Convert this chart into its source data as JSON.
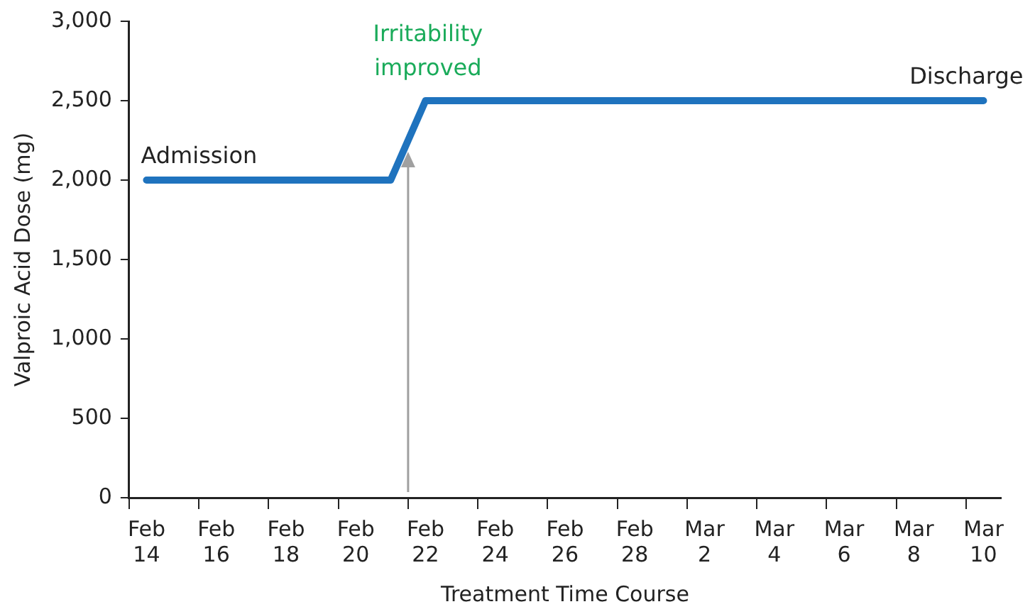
{
  "chart_data": {
    "type": "line",
    "xlabel": "Treatment Time Course",
    "ylabel": "Valproic Acid Dose (mg)",
    "categories": [
      "Feb 14",
      null,
      "Feb 16",
      null,
      "Feb 18",
      null,
      "Feb 20",
      null,
      "Feb 22",
      null,
      "Feb 24",
      null,
      "Feb 26",
      null,
      "Feb 28",
      null,
      "Mar 2",
      null,
      "Mar 4",
      null,
      "Mar 6",
      null,
      "Mar 8",
      null,
      "Mar 10"
    ],
    "series": [
      {
        "color": "#1f73be",
        "values": [
          2000,
          2000,
          2000,
          2000,
          2000,
          2000,
          2000,
          2000,
          2500,
          2500,
          2500,
          2500,
          2500,
          2500,
          2500,
          2500,
          2500,
          2500,
          2500,
          2500,
          2500,
          2500,
          2500,
          2500,
          2500
        ]
      }
    ],
    "ylim": [
      0,
      3000
    ],
    "yticks": [
      {
        "value": 0,
        "label": "0"
      },
      {
        "value": 500,
        "label": "500"
      },
      {
        "value": 1000,
        "label": "1,000"
      },
      {
        "value": 1500,
        "label": "1,500"
      },
      {
        "value": 2000,
        "label": "2,000"
      },
      {
        "value": 2500,
        "label": "2,500"
      },
      {
        "value": 3000,
        "label": "3,000"
      }
    ],
    "grid": false,
    "legend": false,
    "marker": "none",
    "line_style": "solid",
    "annotations": [
      {
        "text": "Admission",
        "x": "Feb 14",
        "y": 2000
      },
      "Irritability improved",
      {
        "text": "Discharge",
        "x": "Mar 10",
        "y": 2500
      }
    ]
  }
}
